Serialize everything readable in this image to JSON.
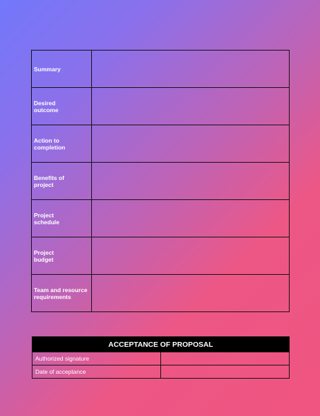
{
  "proposal": {
    "rows": [
      {
        "label": "Summary",
        "value": ""
      },
      {
        "label": "Desired\noutcome",
        "value": ""
      },
      {
        "label": "Action to\ncompletion",
        "value": ""
      },
      {
        "label": "Benefits of\nproject",
        "value": ""
      },
      {
        "label": "Project\nschedule",
        "value": ""
      },
      {
        "label": "Project\nbudget",
        "value": ""
      },
      {
        "label": "Team and resource\nrequirements",
        "value": ""
      }
    ]
  },
  "acceptance": {
    "title": "ACCEPTANCE OF PROPOSAL",
    "rows": [
      {
        "label": "Authorized signature",
        "value": ""
      },
      {
        "label": "Date of acceptance",
        "value": ""
      }
    ]
  },
  "colors": {
    "gradient_start": "#7278fb",
    "gradient_end": "#f0547f",
    "header_bg": "#000000",
    "border": "#111111"
  }
}
